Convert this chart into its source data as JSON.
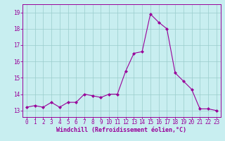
{
  "x": [
    0,
    1,
    2,
    3,
    4,
    5,
    6,
    7,
    8,
    9,
    10,
    11,
    12,
    13,
    14,
    15,
    16,
    17,
    18,
    19,
    20,
    21,
    22,
    23
  ],
  "y": [
    13.2,
    13.3,
    13.2,
    13.5,
    13.2,
    13.5,
    13.5,
    14.0,
    13.9,
    13.8,
    14.0,
    14.0,
    15.4,
    16.5,
    16.6,
    18.9,
    18.4,
    18.0,
    15.3,
    14.8,
    14.3,
    13.1,
    13.1,
    13.0
  ],
  "line_color": "#990099",
  "marker_color": "#990099",
  "bg_color": "#c8eef0",
  "grid_color": "#99cccc",
  "xlabel": "Windchill (Refroidissement éolien,°C)",
  "xlabel_color": "#990099",
  "tick_color": "#990099",
  "spine_color": "#990099",
  "ylim_min": 12.6,
  "ylim_max": 19.5,
  "yticks": [
    13,
    14,
    15,
    16,
    17,
    18,
    19
  ],
  "xticks": [
    0,
    1,
    2,
    3,
    4,
    5,
    6,
    7,
    8,
    9,
    10,
    11,
    12,
    13,
    14,
    15,
    16,
    17,
    18,
    19,
    20,
    21,
    22,
    23
  ],
  "tick_fontsize": 5.5,
  "xlabel_fontsize": 6.0
}
